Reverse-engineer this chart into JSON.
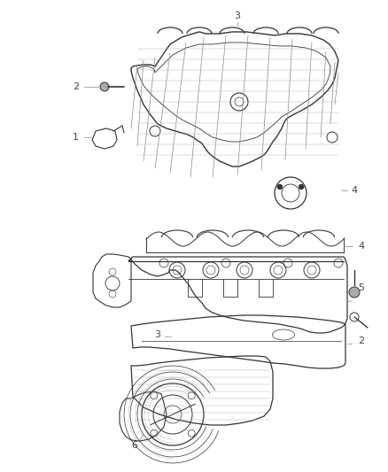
{
  "background_color": "#ffffff",
  "line_color": "#666666",
  "line_color_dark": "#333333",
  "callout_color": "#444444",
  "fig_width": 4.38,
  "fig_height": 5.33,
  "dpi": 100
}
